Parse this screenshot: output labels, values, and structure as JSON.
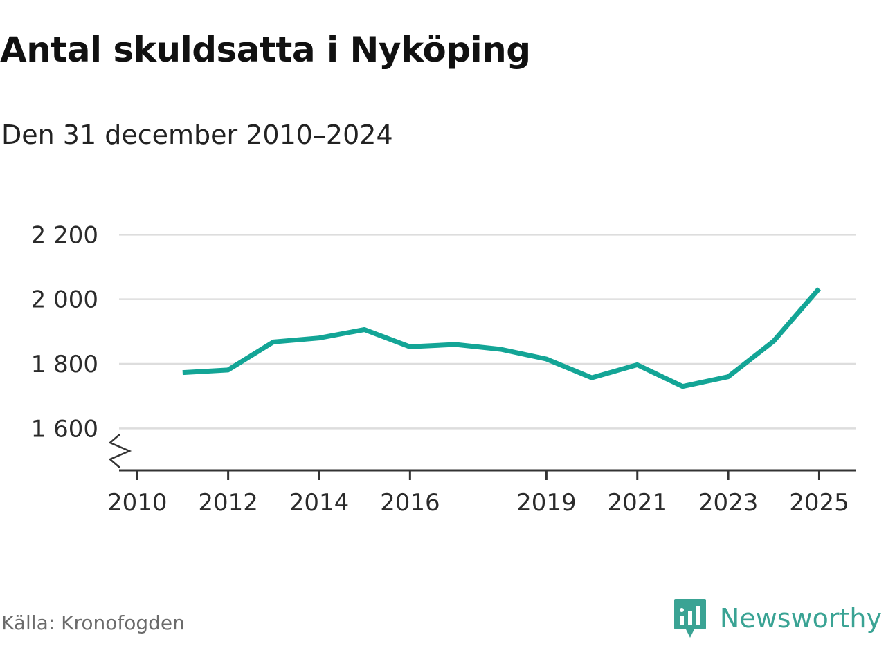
{
  "title": "Antal skuldsatta i Nyköping",
  "subtitle": "Den 31 december 2010–2024",
  "source": "Källa: Kronofogden",
  "brand": {
    "name": "Newsworthy",
    "logo_icon": "newsworthy-speech-bubble-bar-chart-icon",
    "color": "#3aa394"
  },
  "chart_data": {
    "type": "line",
    "title": "Antal skuldsatta i Nyköping",
    "subtitle": "Den 31 december 2010–2024",
    "xlabel": "",
    "ylabel": "",
    "x_ticks": [
      "2010",
      "2012",
      "2014",
      "2016",
      "2019",
      "2021",
      "2023",
      "2025"
    ],
    "y_ticks": [
      "1 600",
      "1 800",
      "2 000",
      "2 200"
    ],
    "y_tick_values": [
      1600,
      1800,
      2000,
      2200
    ],
    "ylim": [
      1470,
      2220
    ],
    "xlim": [
      2009.6,
      2025.8
    ],
    "y_axis_break": true,
    "grid": "horizontal",
    "line_color": "#13a596",
    "series": [
      {
        "x": [
          "2010-12-31",
          "2011-12-31",
          "2012-12-31",
          "2013-12-31",
          "2014-12-31",
          "2015-12-31",
          "2016-12-31",
          "2017-12-31",
          "2018-12-31",
          "2019-12-31",
          "2020-12-31",
          "2021-12-31",
          "2022-12-31",
          "2023-12-31",
          "2024-12-31"
        ],
        "values": [
          1773,
          1781,
          1868,
          1880,
          1906,
          1853,
          1860,
          1845,
          1815,
          1757,
          1797,
          1730,
          1760,
          1870,
          2033
        ]
      }
    ]
  }
}
